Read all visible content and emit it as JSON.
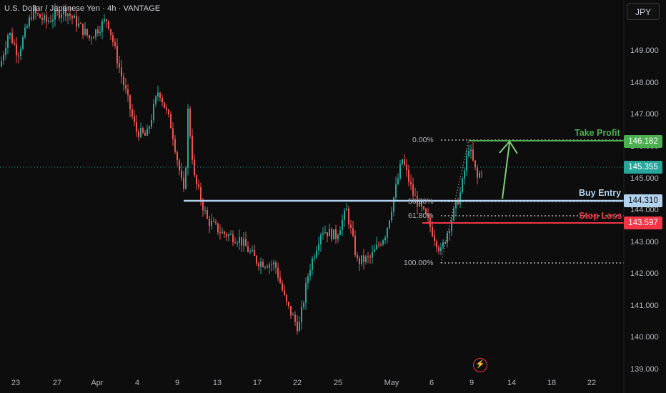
{
  "header": {
    "title": "U.S. Dollar / Japanese Yen · 4h · VANTAGE",
    "currency_button": "JPY"
  },
  "price_axis": [
    "149.000",
    "148.000",
    "147.000",
    "146.000",
    "145.000",
    "144.000",
    "143.000",
    "142.000",
    "141.000",
    "140.000",
    "139.000"
  ],
  "time_axis": [
    "23",
    "27",
    "Apr",
    "4",
    "9",
    "13",
    "17",
    "22",
    "25",
    "May",
    "6",
    "9",
    "14",
    "18",
    "22"
  ],
  "price_tags": {
    "take_profit": "146.182",
    "current": "145.355",
    "buy_entry": "144.310",
    "stop_loss": "143.597"
  },
  "levels": {
    "take_profit_label": "Take Profit",
    "buy_entry_label": "Buy Entry",
    "stop_loss_label": "Stop Loss"
  },
  "fib": {
    "level_0": "0.00%",
    "level_50": "50.00%",
    "level_618": "61.80%",
    "level_100": "100.00%"
  },
  "colors": {
    "up": "#26a69a",
    "down": "#ef5350",
    "take_profit": "#4caf50",
    "buy_entry": "#b2d3f0",
    "stop_loss": "#f23645",
    "current": "#26a69a"
  },
  "chart_data": {
    "type": "candlestick",
    "symbol": "USDJPY",
    "timeframe": "4h",
    "ylim": [
      138.8,
      150.5
    ],
    "x_ticks": [
      "23",
      "27",
      "Apr",
      "4",
      "9",
      "13",
      "17",
      "22",
      "25",
      "May",
      "6",
      "9",
      "14",
      "18",
      "22"
    ],
    "waypoints": [
      {
        "x": 0,
        "y": 148.5
      },
      {
        "x": 12,
        "y": 149.6
      },
      {
        "x": 25,
        "y": 148.9
      },
      {
        "x": 45,
        "y": 150.2
      },
      {
        "x": 65,
        "y": 149.9
      },
      {
        "x": 90,
        "y": 150.3
      },
      {
        "x": 110,
        "y": 149.8
      },
      {
        "x": 125,
        "y": 149.4
      },
      {
        "x": 150,
        "y": 150.0
      },
      {
        "x": 170,
        "y": 148.2
      },
      {
        "x": 190,
        "y": 146.5
      },
      {
        "x": 205,
        "y": 146.3
      },
      {
        "x": 222,
        "y": 147.8
      },
      {
        "x": 240,
        "y": 146.6
      },
      {
        "x": 258,
        "y": 144.4
      },
      {
        "x": 263,
        "y": 147.1
      },
      {
        "x": 272,
        "y": 145.0
      },
      {
        "x": 290,
        "y": 143.7
      },
      {
        "x": 310,
        "y": 143.3
      },
      {
        "x": 335,
        "y": 143.1
      },
      {
        "x": 360,
        "y": 142.4
      },
      {
        "x": 385,
        "y": 142.3
      },
      {
        "x": 400,
        "y": 141.1
      },
      {
        "x": 418,
        "y": 140.3
      },
      {
        "x": 432,
        "y": 142.1
      },
      {
        "x": 450,
        "y": 143.4
      },
      {
        "x": 470,
        "y": 143.2
      },
      {
        "x": 485,
        "y": 144.0
      },
      {
        "x": 500,
        "y": 142.4
      },
      {
        "x": 518,
        "y": 142.5
      },
      {
        "x": 540,
        "y": 143.3
      },
      {
        "x": 563,
        "y": 145.6
      },
      {
        "x": 578,
        "y": 144.5
      },
      {
        "x": 598,
        "y": 143.7
      },
      {
        "x": 617,
        "y": 142.7
      },
      {
        "x": 630,
        "y": 143.6
      },
      {
        "x": 645,
        "y": 144.6
      },
      {
        "x": 656,
        "y": 146.0
      },
      {
        "x": 668,
        "y": 145.0
      },
      {
        "x": 675,
        "y": 145.35
      }
    ]
  }
}
